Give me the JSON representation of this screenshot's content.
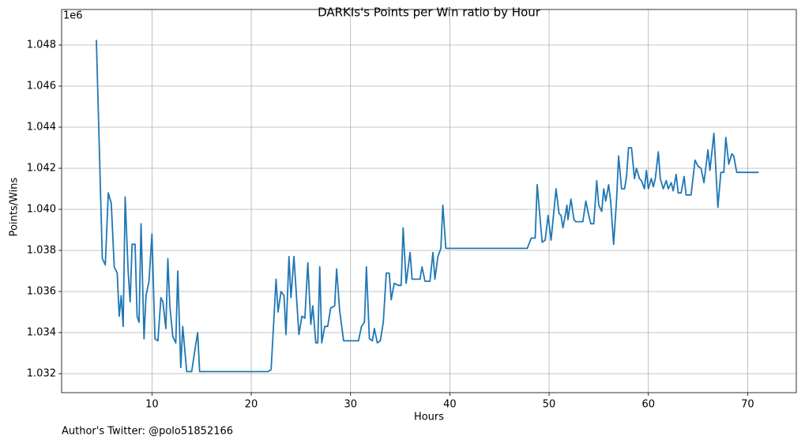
{
  "chart_data": {
    "type": "line",
    "title": "DARKIs's Points per Win ratio by Hour",
    "x_label": "Hours",
    "y_label": "Points/Wins",
    "y_offset_label": "1e6",
    "annotation": "Author's Twitter: @polo51852166",
    "grid": true,
    "xlim": [
      0.9,
      74.9
    ],
    "ylim": [
      1031077,
      1049731
    ],
    "xticks": [
      10,
      20,
      30,
      40,
      50,
      60,
      70
    ],
    "yticks": [
      {
        "value": 1032000,
        "label": "1.032"
      },
      {
        "value": 1034000,
        "label": "1.034"
      },
      {
        "value": 1036000,
        "label": "1.036"
      },
      {
        "value": 1038000,
        "label": "1.038"
      },
      {
        "value": 1040000,
        "label": "1.040"
      },
      {
        "value": 1042000,
        "label": "1.042"
      },
      {
        "value": 1044000,
        "label": "1.044"
      },
      {
        "value": 1046000,
        "label": "1.046"
      },
      {
        "value": 1048000,
        "label": "1.048"
      }
    ],
    "x": [
      4.4,
      5.0,
      5.3,
      5.6,
      5.9,
      6.2,
      6.5,
      6.7,
      6.9,
      7.1,
      7.3,
      7.6,
      7.8,
      8.0,
      8.3,
      8.5,
      8.7,
      8.9,
      9.2,
      9.4,
      9.7,
      10.0,
      10.3,
      10.6,
      10.9,
      11.1,
      11.4,
      11.6,
      11.8,
      12.1,
      12.4,
      12.6,
      12.9,
      13.1,
      13.5,
      14.0,
      14.4,
      14.6,
      14.8,
      21.7,
      22.0,
      22.5,
      22.7,
      23.0,
      23.3,
      23.5,
      23.8,
      24.0,
      24.3,
      24.8,
      25.1,
      25.4,
      25.7,
      26.0,
      26.2,
      26.5,
      26.7,
      26.9,
      27.1,
      27.4,
      27.7,
      28.0,
      28.4,
      28.6,
      28.9,
      29.3,
      30.8,
      31.1,
      31.4,
      31.6,
      31.9,
      32.2,
      32.4,
      32.7,
      33.0,
      33.3,
      33.6,
      33.9,
      34.1,
      34.4,
      34.8,
      35.1,
      35.3,
      35.6,
      36.0,
      36.2,
      37.0,
      37.2,
      37.5,
      38.0,
      38.3,
      38.5,
      38.8,
      39.1,
      39.3,
      39.6,
      47.8,
      48.2,
      48.6,
      48.8,
      49.3,
      49.6,
      49.9,
      50.2,
      50.7,
      51.0,
      51.2,
      51.4,
      51.8,
      51.9,
      52.2,
      52.5,
      52.7,
      53.4,
      53.7,
      54.0,
      54.2,
      54.5,
      54.8,
      55.0,
      55.3,
      55.5,
      55.7,
      56.0,
      56.2,
      56.5,
      56.8,
      57.0,
      57.3,
      57.6,
      57.8,
      58.0,
      58.3,
      58.6,
      58.8,
      59.1,
      59.3,
      59.6,
      59.8,
      60.0,
      60.3,
      60.5,
      60.7,
      61.0,
      61.2,
      61.5,
      61.8,
      62.0,
      62.3,
      62.5,
      62.8,
      63.0,
      63.3,
      63.6,
      63.8,
      64.3,
      64.7,
      65.0,
      65.3,
      65.6,
      66.0,
      66.2,
      66.6,
      67.0,
      67.3,
      67.6,
      67.8,
      68.1,
      68.4,
      68.6,
      68.9,
      71.1
    ],
    "series": [
      {
        "name": "Points/Wins",
        "color": "#1f77b4",
        "values": [
          1048250,
          1037600,
          1037300,
          1040800,
          1040300,
          1037200,
          1036900,
          1034800,
          1035800,
          1034300,
          1040600,
          1037000,
          1035500,
          1038300,
          1038300,
          1034800,
          1034500,
          1039300,
          1033700,
          1035800,
          1036500,
          1038800,
          1033700,
          1033600,
          1035700,
          1035500,
          1034200,
          1037600,
          1035300,
          1033800,
          1033500,
          1037000,
          1032300,
          1034300,
          1032100,
          1032100,
          1033400,
          1034000,
          1032100,
          1032100,
          1032200,
          1036600,
          1035000,
          1036000,
          1035800,
          1033900,
          1037700,
          1035700,
          1037700,
          1033900,
          1034800,
          1034700,
          1037400,
          1034400,
          1035300,
          1033500,
          1033500,
          1037200,
          1033500,
          1034300,
          1034300,
          1035200,
          1035300,
          1037100,
          1035100,
          1033600,
          1033600,
          1034300,
          1034500,
          1037200,
          1033700,
          1033600,
          1034200,
          1033500,
          1033600,
          1034500,
          1036900,
          1036900,
          1035600,
          1036400,
          1036300,
          1036300,
          1039100,
          1036400,
          1037900,
          1036600,
          1036600,
          1037200,
          1036500,
          1036500,
          1037900,
          1036600,
          1037700,
          1038100,
          1040200,
          1038100,
          1038100,
          1038600,
          1038600,
          1041200,
          1038400,
          1038500,
          1039700,
          1038500,
          1041000,
          1039800,
          1039700,
          1039100,
          1040200,
          1039500,
          1040500,
          1039500,
          1039400,
          1039400,
          1040400,
          1039700,
          1039300,
          1039300,
          1041400,
          1040200,
          1039900,
          1041000,
          1040400,
          1041200,
          1040400,
          1038300,
          1040500,
          1042600,
          1041000,
          1041000,
          1041600,
          1043000,
          1043000,
          1041500,
          1042000,
          1041500,
          1041400,
          1041000,
          1041900,
          1041000,
          1041500,
          1041100,
          1041500,
          1042800,
          1041500,
          1041000,
          1041400,
          1041000,
          1041300,
          1040900,
          1041700,
          1040800,
          1040800,
          1041600,
          1040700,
          1040700,
          1042400,
          1042100,
          1042000,
          1041300,
          1042900,
          1041900,
          1043700,
          1040100,
          1041800,
          1041800,
          1043500,
          1042200,
          1042700,
          1042600,
          1041800,
          1041800
        ]
      }
    ]
  }
}
